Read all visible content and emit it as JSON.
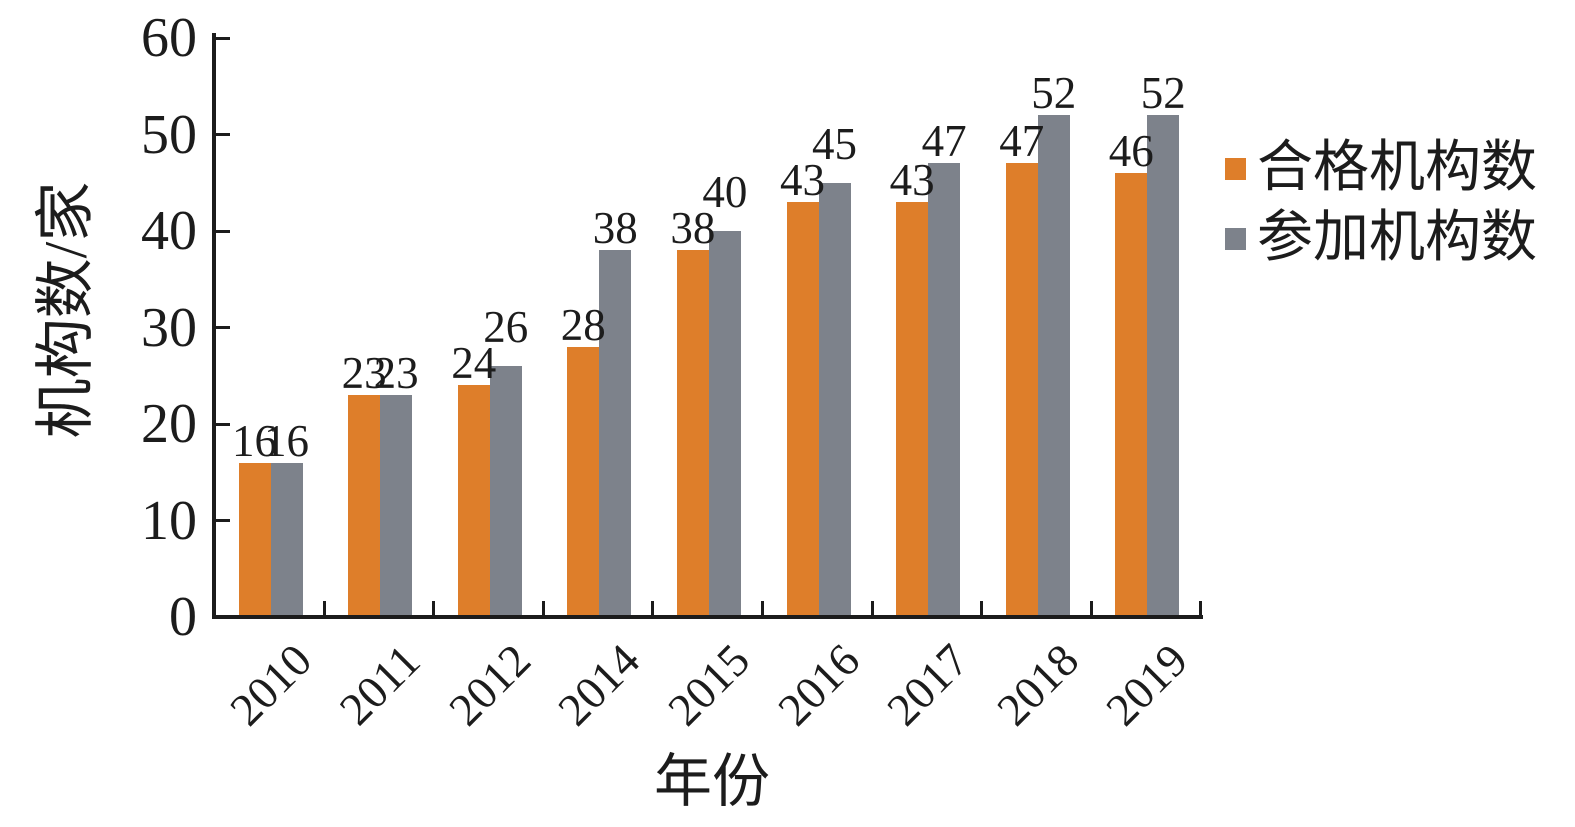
{
  "chart_data": {
    "type": "bar",
    "title": "",
    "categories": [
      "2010",
      "2011",
      "2012",
      "2014",
      "2015",
      "2016",
      "2017",
      "2018",
      "2019"
    ],
    "series": [
      {
        "name": "合格机构数",
        "color": "#de7e2a",
        "values": [
          16,
          23,
          24,
          28,
          38,
          43,
          43,
          47,
          46
        ]
      },
      {
        "name": "参加机构数",
        "color": "#7d828b",
        "values": [
          16,
          23,
          26,
          38,
          40,
          45,
          47,
          52,
          52
        ]
      }
    ],
    "xlabel": "年份",
    "ylabel": "机构数/家",
    "ylim": [
      0,
      60
    ],
    "yticks": [
      0,
      10,
      20,
      30,
      40,
      50,
      60
    ],
    "grid": false,
    "bar_value_labels": true,
    "legend_position": "right",
    "axis_color": "#1c1c1c"
  }
}
